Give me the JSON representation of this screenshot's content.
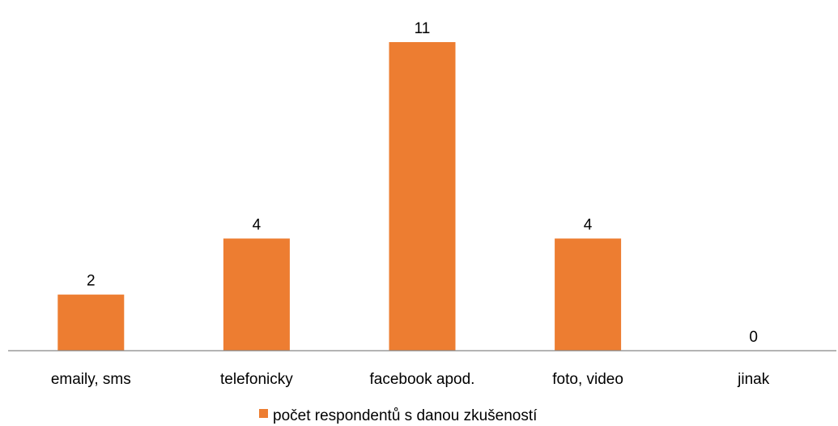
{
  "chart_data": {
    "type": "bar",
    "categories": [
      "emaily, sms",
      "telefonicky",
      "facebook apod.",
      "foto, video",
      "jinak"
    ],
    "series": [
      {
        "name": "počet respondentů s danou zkušeností",
        "values": [
          2,
          4,
          11,
          4,
          0
        ],
        "color": "#ED7D31"
      }
    ],
    "data_labels": [
      "2",
      "4",
      "11",
      "4",
      "0"
    ],
    "title": "",
    "xlabel": "",
    "ylabel": "",
    "ylim": [
      0,
      11
    ],
    "grid": false,
    "y_axis_visible": false,
    "legend": {
      "position": "bottom",
      "entries": [
        "počet respondentů s danou zkušeností"
      ]
    }
  }
}
